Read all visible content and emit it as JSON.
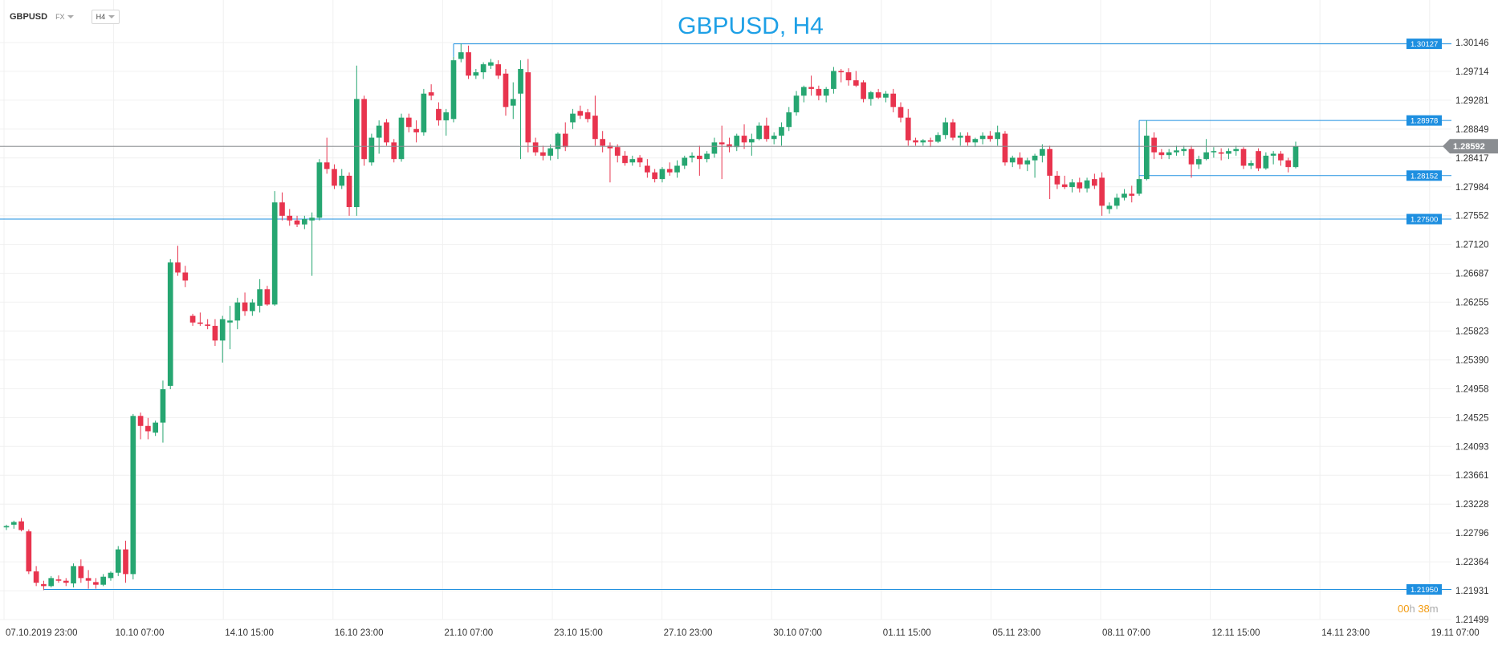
{
  "toolbar": {
    "symbol": "GBPUSD",
    "market": "FX",
    "timeframe": "H4"
  },
  "timer": {
    "hours": "00",
    "h_unit": "h",
    "minutes": "38",
    "m_unit": "m"
  },
  "colors": {
    "up": "#26a671",
    "down": "#e8344e",
    "level": "#1e8fe0",
    "current": "#8a8d91",
    "title": "#1ea0e6",
    "timer": "#f39c12"
  },
  "chart_data": {
    "type": "candlestick",
    "title": "GBPUSD, H4",
    "ylim": [
      1.21499,
      1.30146
    ],
    "yticks": [
      "1.30146",
      "1.29714",
      "1.29281",
      "1.28849",
      "1.28417",
      "1.27984",
      "1.27552",
      "1.27120",
      "1.26687",
      "1.26255",
      "1.25823",
      "1.25390",
      "1.24958",
      "1.24525",
      "1.24093",
      "1.23661",
      "1.23228",
      "1.22796",
      "1.22364",
      "1.21931",
      "1.21499"
    ],
    "xticks": [
      "07.10.2019  23:00",
      "10.10  07:00",
      "14.10  15:00",
      "16.10  23:00",
      "21.10  07:00",
      "23.10  15:00",
      "27.10  23:00",
      "30.10  07:00",
      "01.11  15:00",
      "05.11  23:00",
      "08.11  07:00",
      "12.11  15:00",
      "14.11  23:00",
      "19.11  07:00"
    ],
    "current_price": "1.28592",
    "levels": [
      "1.30127",
      "1.28978",
      "1.28152",
      "1.27500",
      "1.21950"
    ],
    "grid": true,
    "candles": [
      [
        1.2288,
        1.2292,
        1.2284,
        1.229
      ],
      [
        1.2292,
        1.2298,
        1.2286,
        1.2296
      ],
      [
        1.2297,
        1.2302,
        1.2282,
        1.2284
      ],
      [
        1.2282,
        1.2285,
        1.2218,
        1.2222
      ],
      [
        1.2222,
        1.223,
        1.22,
        1.2205
      ],
      [
        1.2203,
        1.2208,
        1.2194,
        1.22
      ],
      [
        1.22,
        1.2215,
        1.2198,
        1.2212
      ],
      [
        1.221,
        1.2216,
        1.2205,
        1.2208
      ],
      [
        1.2208,
        1.2212,
        1.22,
        1.2205
      ],
      [
        1.2204,
        1.2234,
        1.2198,
        1.223
      ],
      [
        1.223,
        1.224,
        1.2205,
        1.2212
      ],
      [
        1.2212,
        1.2224,
        1.2196,
        1.2208
      ],
      [
        1.2206,
        1.2212,
        1.2196,
        1.2202
      ],
      [
        1.2202,
        1.2218,
        1.22,
        1.2214
      ],
      [
        1.2212,
        1.2222,
        1.2208,
        1.222
      ],
      [
        1.222,
        1.226,
        1.2215,
        1.2255
      ],
      [
        1.2255,
        1.2268,
        1.2205,
        1.2218
      ],
      [
        1.2218,
        1.2458,
        1.221,
        1.2455
      ],
      [
        1.2455,
        1.246,
        1.242,
        1.244
      ],
      [
        1.244,
        1.2452,
        1.242,
        1.2432
      ],
      [
        1.243,
        1.2448,
        1.2425,
        1.2445
      ],
      [
        1.2445,
        1.2508,
        1.2415,
        1.2495
      ],
      [
        1.25,
        1.269,
        1.2495,
        1.2685
      ],
      [
        1.2685,
        1.271,
        1.2665,
        1.267
      ],
      [
        1.267,
        1.268,
        1.2648,
        1.2658
      ],
      [
        1.2605,
        1.2608,
        1.259,
        1.2595
      ],
      [
        1.2595,
        1.261,
        1.259,
        1.2593
      ],
      [
        1.2592,
        1.26,
        1.2585,
        1.259
      ],
      [
        1.259,
        1.26,
        1.256,
        1.2568
      ],
      [
        1.2568,
        1.2605,
        1.2535,
        1.26
      ],
      [
        1.2595,
        1.262,
        1.2555,
        1.2598
      ],
      [
        1.2598,
        1.2632,
        1.2585,
        1.2625
      ],
      [
        1.2625,
        1.264,
        1.2605,
        1.2612
      ],
      [
        1.2612,
        1.263,
        1.2605,
        1.2625
      ],
      [
        1.262,
        1.266,
        1.261,
        1.2645
      ],
      [
        1.2645,
        1.265,
        1.262,
        1.2622
      ],
      [
        1.2622,
        1.2792,
        1.262,
        1.2775
      ],
      [
        1.2775,
        1.279,
        1.2748,
        1.2755
      ],
      [
        1.2755,
        1.2765,
        1.274,
        1.2748
      ],
      [
        1.2748,
        1.2755,
        1.2738,
        1.2742
      ],
      [
        1.2742,
        1.2755,
        1.2735,
        1.275
      ],
      [
        1.2748,
        1.276,
        1.2665,
        1.2752
      ],
      [
        1.2752,
        1.284,
        1.2748,
        1.2835
      ],
      [
        1.2835,
        1.2872,
        1.2818,
        1.2825
      ],
      [
        1.2825,
        1.2832,
        1.2795,
        1.28
      ],
      [
        1.28,
        1.2825,
        1.2795,
        1.2815
      ],
      [
        1.2815,
        1.282,
        1.2755,
        1.2768
      ],
      [
        1.2768,
        1.298,
        1.2755,
        1.293
      ],
      [
        1.293,
        1.2935,
        1.283,
        1.284
      ],
      [
        1.2835,
        1.2878,
        1.283,
        1.2872
      ],
      [
        1.2872,
        1.2898,
        1.2848,
        1.289
      ],
      [
        1.2895,
        1.29,
        1.286,
        1.2865
      ],
      [
        1.2865,
        1.287,
        1.2835,
        1.284
      ],
      [
        1.284,
        1.2908,
        1.2836,
        1.2902
      ],
      [
        1.2902,
        1.2908,
        1.288,
        1.2888
      ],
      [
        1.2885,
        1.2898,
        1.2865,
        1.288
      ],
      [
        1.288,
        1.2945,
        1.2875,
        1.2938
      ],
      [
        1.294,
        1.2952,
        1.2928,
        1.2935
      ],
      [
        1.2915,
        1.2925,
        1.289,
        1.2898
      ],
      [
        1.2898,
        1.2915,
        1.2875,
        1.291
      ],
      [
        1.29,
        1.2993,
        1.2895,
        1.2988
      ],
      [
        1.299,
        1.3013,
        1.2985,
        1.3
      ],
      [
        1.3,
        1.301,
        1.296,
        1.2965
      ],
      [
        1.2965,
        1.2975,
        1.296,
        1.297
      ],
      [
        1.297,
        1.2985,
        1.296,
        1.2982
      ],
      [
        1.298,
        1.299,
        1.2975,
        1.2985
      ],
      [
        1.2982,
        1.2988,
        1.296,
        1.2965
      ],
      [
        1.2968,
        1.2975,
        1.2905,
        1.2918
      ],
      [
        1.292,
        1.2955,
        1.29,
        1.293
      ],
      [
        1.2938,
        1.2988,
        1.284,
        1.2975
      ],
      [
        1.297,
        1.299,
        1.285,
        1.2865
      ],
      [
        1.2865,
        1.2872,
        1.2845,
        1.285
      ],
      [
        1.285,
        1.286,
        1.2838,
        1.2845
      ],
      [
        1.2845,
        1.2862,
        1.2838,
        1.2856
      ],
      [
        1.2855,
        1.288,
        1.284,
        1.2878
      ],
      [
        1.2878,
        1.2895,
        1.2852,
        1.2858
      ],
      [
        1.2895,
        1.2915,
        1.2885,
        1.2908
      ],
      [
        1.2912,
        1.292,
        1.29,
        1.2905
      ],
      [
        1.291,
        1.2915,
        1.2895,
        1.29
      ],
      [
        1.2905,
        1.2935,
        1.286,
        1.287
      ],
      [
        1.287,
        1.2882,
        1.285,
        1.286
      ],
      [
        1.286,
        1.2865,
        1.2805,
        1.2856
      ],
      [
        1.2858,
        1.2862,
        1.2835,
        1.2845
      ],
      [
        1.2845,
        1.2852,
        1.283,
        1.2834
      ],
      [
        1.2835,
        1.2845,
        1.283,
        1.284
      ],
      [
        1.2842,
        1.2846,
        1.2828,
        1.2835
      ],
      [
        1.283,
        1.284,
        1.2812,
        1.282
      ],
      [
        1.282,
        1.2825,
        1.2805,
        1.281
      ],
      [
        1.281,
        1.2828,
        1.2805,
        1.2825
      ],
      [
        1.2825,
        1.2835,
        1.2815,
        1.282
      ],
      [
        1.282,
        1.2838,
        1.2812,
        1.283
      ],
      [
        1.283,
        1.2845,
        1.2825,
        1.2842
      ],
      [
        1.2842,
        1.285,
        1.2835,
        1.2845
      ],
      [
        1.2845,
        1.286,
        1.2815,
        1.284
      ],
      [
        1.284,
        1.2852,
        1.2835,
        1.2848
      ],
      [
        1.2848,
        1.2872,
        1.2842,
        1.2865
      ],
      [
        1.2865,
        1.289,
        1.281,
        1.2862
      ],
      [
        1.2862,
        1.2872,
        1.285,
        1.2858
      ],
      [
        1.2858,
        1.2878,
        1.2852,
        1.2875
      ],
      [
        1.2875,
        1.2892,
        1.2855,
        1.2865
      ],
      [
        1.2865,
        1.2878,
        1.2845,
        1.287
      ],
      [
        1.287,
        1.2895,
        1.2868,
        1.289
      ],
      [
        1.289,
        1.2902,
        1.2866,
        1.287
      ],
      [
        1.287,
        1.288,
        1.2862,
        1.2875
      ],
      [
        1.2875,
        1.2895,
        1.286,
        1.2888
      ],
      [
        1.2888,
        1.2918,
        1.2882,
        1.291
      ],
      [
        1.291,
        1.2942,
        1.2905,
        1.2935
      ],
      [
        1.2935,
        1.295,
        1.2925,
        1.2948
      ],
      [
        1.2948,
        1.2965,
        1.2935,
        1.2945
      ],
      [
        1.2945,
        1.295,
        1.2928,
        1.2935
      ],
      [
        1.2935,
        1.2948,
        1.2925,
        1.2945
      ],
      [
        1.2945,
        1.2978,
        1.2938,
        1.2972
      ],
      [
        1.2972,
        1.2975,
        1.2955,
        1.297
      ],
      [
        1.297,
        1.2976,
        1.295,
        1.2958
      ],
      [
        1.2958,
        1.2972,
        1.2948,
        1.295
      ],
      [
        1.2955,
        1.2958,
        1.2925,
        1.293
      ],
      [
        1.293,
        1.2942,
        1.292,
        1.294
      ],
      [
        1.294,
        1.2945,
        1.293,
        1.2932
      ],
      [
        1.2932,
        1.2942,
        1.2925,
        1.2938
      ],
      [
        1.2938,
        1.2945,
        1.291,
        1.2918
      ],
      [
        1.2918,
        1.2925,
        1.2895,
        1.2902
      ],
      [
        1.2902,
        1.2915,
        1.286,
        1.2868
      ],
      [
        1.2868,
        1.2872,
        1.286,
        1.2865
      ],
      [
        1.2865,
        1.287,
        1.286,
        1.2868
      ],
      [
        1.2868,
        1.2872,
        1.2858,
        1.2866
      ],
      [
        1.2866,
        1.288,
        1.2864,
        1.2876
      ],
      [
        1.2876,
        1.2902,
        1.287,
        1.2895
      ],
      [
        1.2895,
        1.29,
        1.2868,
        1.2872
      ],
      [
        1.2872,
        1.288,
        1.286,
        1.2875
      ],
      [
        1.2875,
        1.288,
        1.286,
        1.2865
      ],
      [
        1.2865,
        1.2872,
        1.2858,
        1.287
      ],
      [
        1.287,
        1.288,
        1.2862,
        1.2875
      ],
      [
        1.2875,
        1.2882,
        1.2866,
        1.287
      ],
      [
        1.287,
        1.289,
        1.286,
        1.288
      ],
      [
        1.2878,
        1.2882,
        1.283,
        1.2835
      ],
      [
        1.2835,
        1.2845,
        1.2828,
        1.2842
      ],
      [
        1.2842,
        1.285,
        1.2825,
        1.2832
      ],
      [
        1.2832,
        1.2842,
        1.2822,
        1.2838
      ],
      [
        1.2838,
        1.2848,
        1.2812,
        1.2845
      ],
      [
        1.2845,
        1.2862,
        1.2835,
        1.2855
      ],
      [
        1.2855,
        1.286,
        1.278,
        1.2815
      ],
      [
        1.2815,
        1.2822,
        1.2795,
        1.2802
      ],
      [
        1.2802,
        1.2815,
        1.2795,
        1.2798
      ],
      [
        1.2798,
        1.281,
        1.279,
        1.2805
      ],
      [
        1.2805,
        1.2812,
        1.279,
        1.2796
      ],
      [
        1.2796,
        1.2812,
        1.279,
        1.2808
      ],
      [
        1.281,
        1.2818,
        1.2795,
        1.28
      ],
      [
        1.2812,
        1.282,
        1.2755,
        1.277
      ],
      [
        1.2765,
        1.2775,
        1.2758,
        1.277
      ],
      [
        1.277,
        1.2788,
        1.2765,
        1.2782
      ],
      [
        1.2782,
        1.2795,
        1.2778,
        1.2788
      ],
      [
        1.2788,
        1.28,
        1.2775,
        1.2785
      ],
      [
        1.2788,
        1.2815,
        1.2785,
        1.281
      ],
      [
        1.281,
        1.2898,
        1.2808,
        1.2875
      ],
      [
        1.2872,
        1.288,
        1.284,
        1.285
      ],
      [
        1.285,
        1.2855,
        1.284,
        1.2846
      ],
      [
        1.2846,
        1.2855,
        1.284,
        1.285
      ],
      [
        1.285,
        1.286,
        1.2845,
        1.2853
      ],
      [
        1.2852,
        1.286,
        1.2845,
        1.2855
      ],
      [
        1.2855,
        1.286,
        1.2812,
        1.2832
      ],
      [
        1.2832,
        1.2845,
        1.2825,
        1.284
      ],
      [
        1.284,
        1.287,
        1.2838,
        1.285
      ],
      [
        1.285,
        1.2858,
        1.2842,
        1.2852
      ],
      [
        1.285,
        1.2856,
        1.2838,
        1.2848
      ],
      [
        1.2848,
        1.2856,
        1.284,
        1.2852
      ],
      [
        1.2852,
        1.286,
        1.2845,
        1.2855
      ],
      [
        1.2855,
        1.2858,
        1.2825,
        1.283
      ],
      [
        1.283,
        1.2838,
        1.2825,
        1.2834
      ],
      [
        1.2852,
        1.2856,
        1.2822,
        1.2826
      ],
      [
        1.2826,
        1.285,
        1.2824,
        1.2845
      ],
      [
        1.2845,
        1.2852,
        1.2832,
        1.2848
      ],
      [
        1.2848,
        1.2852,
        1.283,
        1.2838
      ],
      [
        1.2838,
        1.2842,
        1.282,
        1.2828
      ],
      [
        1.2828,
        1.2866,
        1.2826,
        1.2859
      ]
    ]
  }
}
